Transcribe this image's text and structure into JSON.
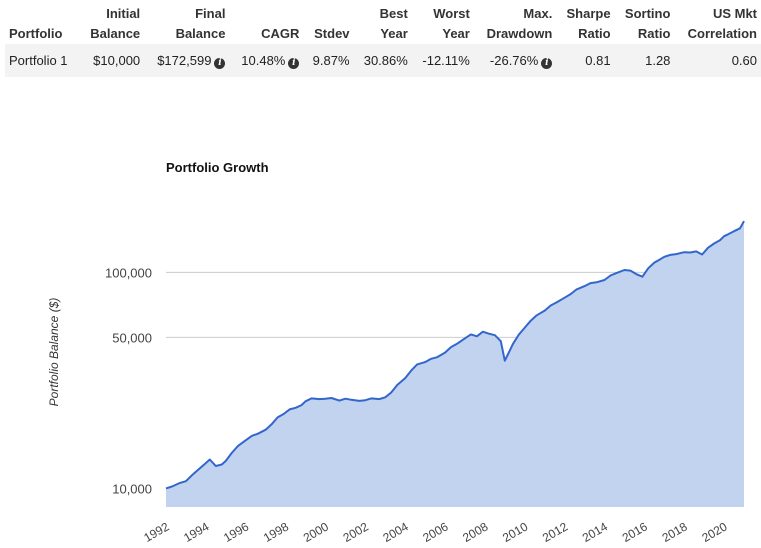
{
  "table": {
    "headers": [
      [
        "",
        "Portfolio"
      ],
      [
        "Initial",
        "Balance"
      ],
      [
        "Final",
        "Balance"
      ],
      [
        "",
        "CAGR"
      ],
      [
        "",
        "Stdev"
      ],
      [
        "Best",
        "Year"
      ],
      [
        "Worst",
        "Year"
      ],
      [
        "Max.",
        "Drawdown"
      ],
      [
        "Sharpe",
        "Ratio"
      ],
      [
        "Sortino",
        "Ratio"
      ],
      [
        "US Mkt",
        "Correlation"
      ]
    ],
    "row": {
      "portfolio": "Portfolio 1",
      "initial_balance": "$10,000",
      "final_balance": "$172,599",
      "cagr": "10.48%",
      "stdev": "9.87%",
      "best_year": "30.86%",
      "worst_year": "-12.11%",
      "max_drawdown": "-26.76%",
      "sharpe": "0.81",
      "sortino": "1.28",
      "us_mkt_correlation": "0.60"
    },
    "info_icon": "info-circle-icon"
  },
  "chart_data": {
    "type": "area",
    "title": "Portfolio Growth",
    "ylabel": "Portfolio Balance ($)",
    "xlabel": "",
    "y_scale": "log",
    "y_ticks": [
      10000,
      50000,
      100000
    ],
    "y_tick_labels": [
      "10,000",
      "50,000",
      "100,000"
    ],
    "x_ticks": [
      "1992",
      "1994",
      "1996",
      "1998",
      "2000",
      "2002",
      "2004",
      "2006",
      "2008",
      "2010",
      "2012",
      "2014",
      "2016",
      "2018",
      "2020"
    ],
    "xlim": [
      1992,
      2021
    ],
    "ylim": [
      8200,
      205000
    ],
    "grid": true,
    "colors": {
      "line": "#3366cc",
      "fill": "#c2d3f0",
      "grid": "#cccccc"
    },
    "series": [
      {
        "x": [
          1992.0,
          1992.3,
          1992.7,
          1993.0,
          1993.3,
          1993.7,
          1994.0,
          1994.2,
          1994.5,
          1994.8,
          1995.0,
          1995.3,
          1995.6,
          1996.0,
          1996.3,
          1996.6,
          1997.0,
          1997.3,
          1997.6,
          1997.9,
          1998.2,
          1998.5,
          1998.8,
          1999.0,
          1999.3,
          1999.7,
          2000.0,
          2000.3,
          2000.7,
          2001.0,
          2001.3,
          2001.7,
          2002.0,
          2002.3,
          2002.7,
          2003.0,
          2003.3,
          2003.6,
          2004.0,
          2004.3,
          2004.6,
          2005.0,
          2005.3,
          2005.6,
          2006.0,
          2006.3,
          2006.6,
          2007.0,
          2007.3,
          2007.6,
          2007.9,
          2008.2,
          2008.5,
          2008.8,
          2009.0,
          2009.2,
          2009.4,
          2009.7,
          2010.0,
          2010.3,
          2010.6,
          2011.0,
          2011.3,
          2011.6,
          2012.0,
          2012.3,
          2012.6,
          2013.0,
          2013.3,
          2013.6,
          2014.0,
          2014.3,
          2014.6,
          2015.0,
          2015.3,
          2015.6,
          2015.9,
          2016.2,
          2016.5,
          2016.8,
          2017.0,
          2017.3,
          2017.6,
          2018.0,
          2018.3,
          2018.6,
          2018.9,
          2019.2,
          2019.5,
          2019.8,
          2020.0,
          2020.2,
          2020.5,
          2020.8,
          2021.0
        ],
        "y": [
          10000,
          10200,
          10600,
          10800,
          11500,
          12400,
          13100,
          13600,
          12700,
          12900,
          13400,
          14600,
          15700,
          16700,
          17500,
          17900,
          18700,
          19800,
          21300,
          22100,
          23200,
          23600,
          24300,
          25300,
          26100,
          25900,
          26000,
          26200,
          25500,
          26000,
          25700,
          25400,
          25600,
          26100,
          25900,
          26400,
          27800,
          30100,
          32400,
          35100,
          37500,
          38400,
          39800,
          40500,
          42500,
          45100,
          46700,
          49500,
          51600,
          50600,
          53100,
          52000,
          51200,
          48000,
          39000,
          42500,
          46500,
          51500,
          55500,
          59700,
          63300,
          66500,
          70200,
          72600,
          76300,
          79300,
          83400,
          86400,
          89200,
          89900,
          92200,
          96700,
          99200,
          102500,
          101900,
          98000,
          95500,
          104500,
          111000,
          115000,
          118000,
          120500,
          121500,
          124000,
          123500,
          125000,
          121000,
          130000,
          136000,
          141000,
          147000,
          150000,
          155000,
          160000,
          172599
        ]
      }
    ]
  }
}
